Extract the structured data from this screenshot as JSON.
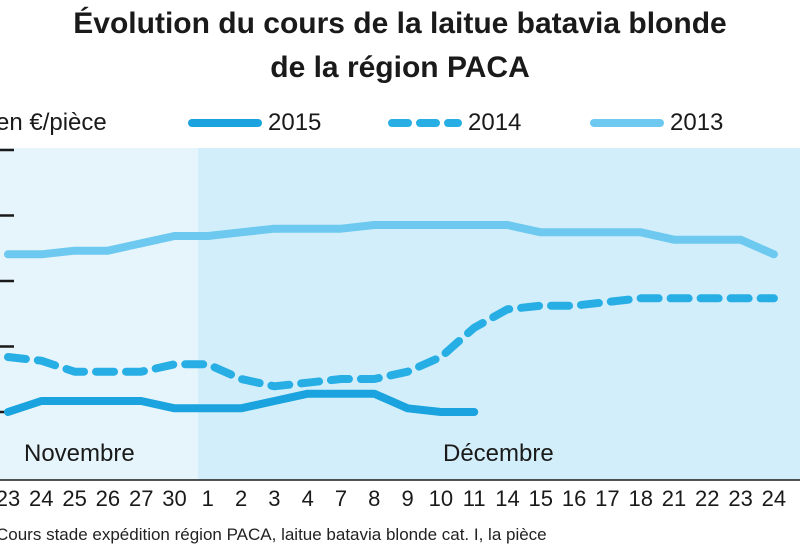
{
  "title_lines": [
    "Évolution du cours de la laitue batavia blonde",
    "de la région PACA"
  ],
  "unit_label": "en €/pièce",
  "source": "Cours stade expédition région PACA, laitue batavia blonde cat. I, la pièce",
  "colors": {
    "s2015": "#1aa3de",
    "s2014": "#27aee4",
    "s2013": "#6dc9ef",
    "band_light": "#e6f5fc",
    "band_dark": "#d2eefa",
    "axis": "#1a1a1a"
  },
  "chart_data": {
    "type": "line",
    "title": "Évolution du cours de la laitue batavia blonde de la région PACA",
    "ylabel": "en €/pièce",
    "months": [
      "Novembre",
      "Décembre"
    ],
    "x": [
      "23",
      "24",
      "25",
      "26",
      "27",
      "30",
      "1",
      "2",
      "3",
      "4",
      "7",
      "8",
      "9",
      "10",
      "11",
      "14",
      "15",
      "16",
      "17",
      "18",
      "21",
      "22",
      "23",
      "24"
    ],
    "y_ticks_shown": 5,
    "ylim": [
      0.1,
      1.0
    ],
    "series": [
      {
        "name": "2015",
        "style": "solid",
        "values": [
          0.28,
          0.31,
          0.31,
          0.31,
          0.31,
          0.29,
          0.29,
          0.29,
          0.31,
          0.33,
          0.33,
          0.33,
          0.29,
          0.28,
          0.28,
          null,
          null,
          null,
          null,
          null,
          null,
          null,
          null,
          null
        ]
      },
      {
        "name": "2014",
        "style": "dashed",
        "values": [
          0.43,
          0.42,
          0.39,
          0.39,
          0.39,
          0.41,
          0.41,
          0.37,
          0.35,
          0.36,
          0.37,
          0.37,
          0.39,
          0.43,
          0.51,
          0.56,
          0.57,
          0.57,
          0.58,
          0.59,
          0.59,
          0.59,
          0.59,
          0.59
        ]
      },
      {
        "name": "2013",
        "style": "solid",
        "values": [
          0.71,
          0.71,
          0.72,
          0.72,
          0.74,
          0.76,
          0.76,
          0.77,
          0.78,
          0.78,
          0.78,
          0.79,
          0.79,
          0.79,
          0.79,
          0.79,
          0.77,
          0.77,
          0.77,
          0.77,
          0.75,
          0.75,
          0.75,
          0.71
        ]
      }
    ],
    "legend_position": "top"
  }
}
